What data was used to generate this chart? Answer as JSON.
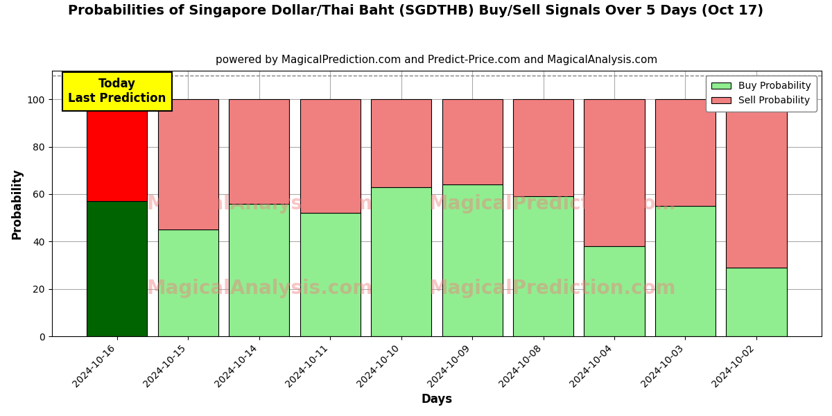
{
  "title": "Probabilities of Singapore Dollar/Thai Baht (SGDTHB) Buy/Sell Signals Over 5 Days (Oct 17)",
  "subtitle": "powered by MagicalPrediction.com and Predict-Price.com and MagicalAnalysis.com",
  "xlabel": "Days",
  "ylabel": "Probability",
  "categories": [
    "2024-10-16",
    "2024-10-15",
    "2024-10-14",
    "2024-10-11",
    "2024-10-10",
    "2024-10-09",
    "2024-10-08",
    "2024-10-04",
    "2024-10-03",
    "2024-10-02"
  ],
  "buy_values": [
    57,
    45,
    56,
    52,
    63,
    64,
    59,
    38,
    55,
    29
  ],
  "sell_values": [
    43,
    55,
    44,
    48,
    37,
    36,
    41,
    62,
    45,
    71
  ],
  "buy_color_first": "#006400",
  "sell_color_first": "#FF0000",
  "buy_color_rest": "#90EE90",
  "sell_color_rest": "#F08080",
  "bar_edge_color": "#000000",
  "ylim": [
    0,
    112
  ],
  "yticks": [
    0,
    20,
    40,
    60,
    80,
    100
  ],
  "dashed_line_y": 110,
  "watermark1_text": "MagicalAnalysis.com",
  "watermark2_text": "MagicalPrediction.com",
  "watermark_color": "#F08080",
  "watermark_alpha": 0.45,
  "annotation_text": "Today\nLast Prediction",
  "annotation_bg": "#FFFF00",
  "annotation_fontsize": 12,
  "title_fontsize": 14,
  "subtitle_fontsize": 11,
  "legend_buy_color": "#90EE90",
  "legend_sell_color": "#F08080",
  "grid_color": "#aaaaaa",
  "background_color": "#ffffff",
  "bar_width": 0.85
}
